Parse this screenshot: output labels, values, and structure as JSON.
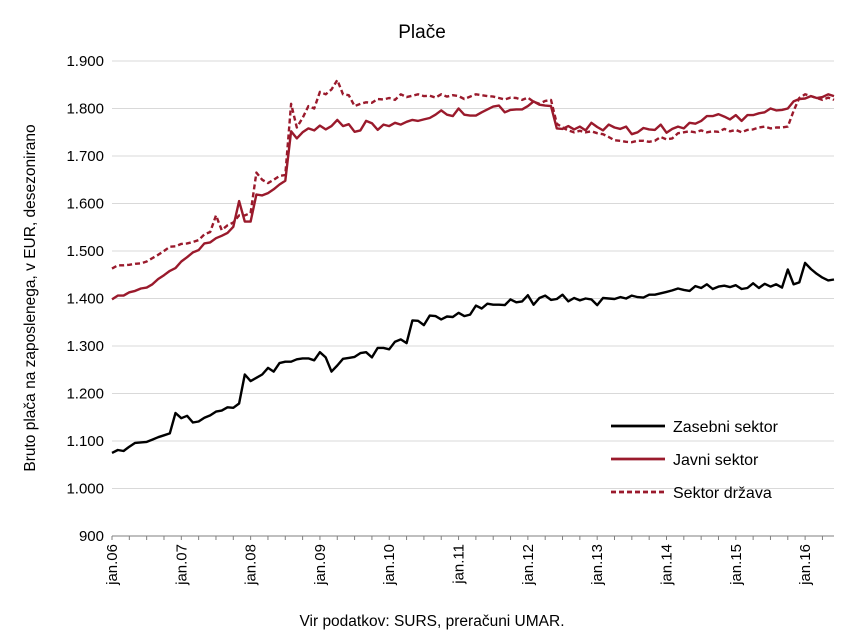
{
  "chart_data": {
    "type": "line",
    "title": "Plače",
    "ylabel": "Bruto plača na zaposlenega, v EUR, desezonirano",
    "xlabel": "",
    "source_note": "Vir podatkov: SURS, preračuni UMAR.",
    "y_ticks": [
      "900",
      "1.000",
      "1.100",
      "1.200",
      "1.300",
      "1.400",
      "1.500",
      "1.600",
      "1.700",
      "1.800",
      "1.900"
    ],
    "ylim": [
      900,
      1900
    ],
    "x_tick_labels": [
      "jan.06",
      "jan.07",
      "jan.08",
      "jan.09",
      "jan.10",
      "jan.11",
      "jan.12",
      "jan.13",
      "jan.14",
      "jan.15",
      "jan.16"
    ],
    "x_start": "2006-01",
    "x_end": "2016-07",
    "grid": "horizontal",
    "legend_position": "bottom-right",
    "series": [
      {
        "name": "Zasebni sektor",
        "color": "#000000",
        "style": "solid",
        "values": [
          1075,
          1081,
          1079,
          1088,
          1096,
          1097,
          1098,
          1103,
          1108,
          1112,
          1116,
          1159,
          1148,
          1153,
          1139,
          1141,
          1149,
          1154,
          1162,
          1164,
          1171,
          1170,
          1179,
          1240,
          1226,
          1233,
          1240,
          1254,
          1246,
          1264,
          1267,
          1267,
          1272,
          1274,
          1274,
          1270,
          1287,
          1276,
          1246,
          1259,
          1273,
          1275,
          1277,
          1285,
          1287,
          1276,
          1296,
          1296,
          1293,
          1309,
          1314,
          1306,
          1354,
          1353,
          1344,
          1364,
          1363,
          1356,
          1362,
          1361,
          1370,
          1363,
          1366,
          1385,
          1379,
          1389,
          1387,
          1387,
          1386,
          1398,
          1392,
          1394,
          1407,
          1387,
          1401,
          1406,
          1397,
          1399,
          1408,
          1394,
          1401,
          1396,
          1400,
          1398,
          1386,
          1401,
          1400,
          1399,
          1403,
          1400,
          1406,
          1403,
          1402,
          1408,
          1408,
          1411,
          1414,
          1417,
          1421,
          1418,
          1416,
          1426,
          1422,
          1430,
          1420,
          1425,
          1427,
          1424,
          1428,
          1420,
          1422,
          1432,
          1422,
          1431,
          1425,
          1430,
          1423,
          1461,
          1430,
          1434,
          1475,
          1462,
          1452,
          1444,
          1438,
          1440
        ]
      },
      {
        "name": "Javni sektor",
        "color": "#9a1a2c",
        "style": "solid",
        "values": [
          1398,
          1406,
          1406,
          1413,
          1416,
          1421,
          1423,
          1430,
          1441,
          1449,
          1458,
          1464,
          1478,
          1487,
          1497,
          1502,
          1516,
          1518,
          1527,
          1532,
          1538,
          1551,
          1605,
          1562,
          1562,
          1619,
          1617,
          1622,
          1630,
          1640,
          1648,
          1752,
          1737,
          1750,
          1758,
          1754,
          1764,
          1756,
          1763,
          1776,
          1763,
          1767,
          1751,
          1754,
          1774,
          1769,
          1755,
          1766,
          1763,
          1770,
          1766,
          1772,
          1776,
          1774,
          1777,
          1780,
          1787,
          1796,
          1787,
          1784,
          1800,
          1787,
          1785,
          1785,
          1792,
          1798,
          1804,
          1806,
          1792,
          1797,
          1798,
          1798,
          1805,
          1815,
          1808,
          1806,
          1805,
          1758,
          1757,
          1763,
          1756,
          1762,
          1754,
          1770,
          1761,
          1754,
          1766,
          1760,
          1757,
          1762,
          1746,
          1750,
          1759,
          1756,
          1755,
          1766,
          1749,
          1757,
          1762,
          1758,
          1770,
          1768,
          1774,
          1784,
          1784,
          1788,
          1783,
          1777,
          1786,
          1774,
          1786,
          1786,
          1790,
          1792,
          1800,
          1796,
          1797,
          1800,
          1815,
          1820,
          1821,
          1826,
          1822,
          1824,
          1830,
          1826
        ]
      },
      {
        "name": "Sektor država",
        "color": "#9a1a2c",
        "style": "dashed",
        "values": [
          1463,
          1470,
          1470,
          1471,
          1473,
          1474,
          1478,
          1485,
          1492,
          1500,
          1509,
          1510,
          1515,
          1516,
          1519,
          1523,
          1535,
          1540,
          1575,
          1544,
          1554,
          1560,
          1575,
          1575,
          1580,
          1665,
          1650,
          1643,
          1650,
          1658,
          1660,
          1810,
          1760,
          1780,
          1805,
          1800,
          1835,
          1830,
          1840,
          1860,
          1830,
          1828,
          1805,
          1810,
          1813,
          1812,
          1820,
          1819,
          1822,
          1818,
          1830,
          1824,
          1827,
          1830,
          1826,
          1827,
          1823,
          1830,
          1825,
          1828,
          1826,
          1820,
          1825,
          1830,
          1828,
          1826,
          1825,
          1822,
          1819,
          1823,
          1822,
          1818,
          1823,
          1814,
          1810,
          1816,
          1818,
          1768,
          1760,
          1754,
          1750,
          1753,
          1750,
          1752,
          1748,
          1746,
          1740,
          1733,
          1732,
          1730,
          1729,
          1732,
          1732,
          1730,
          1732,
          1740,
          1735,
          1737,
          1748,
          1750,
          1752,
          1750,
          1754,
          1750,
          1752,
          1751,
          1757,
          1752,
          1755,
          1750,
          1755,
          1756,
          1760,
          1762,
          1758,
          1760,
          1760,
          1762,
          1795,
          1822,
          1830,
          1826,
          1822,
          1818,
          1823,
          1818
        ]
      }
    ]
  }
}
